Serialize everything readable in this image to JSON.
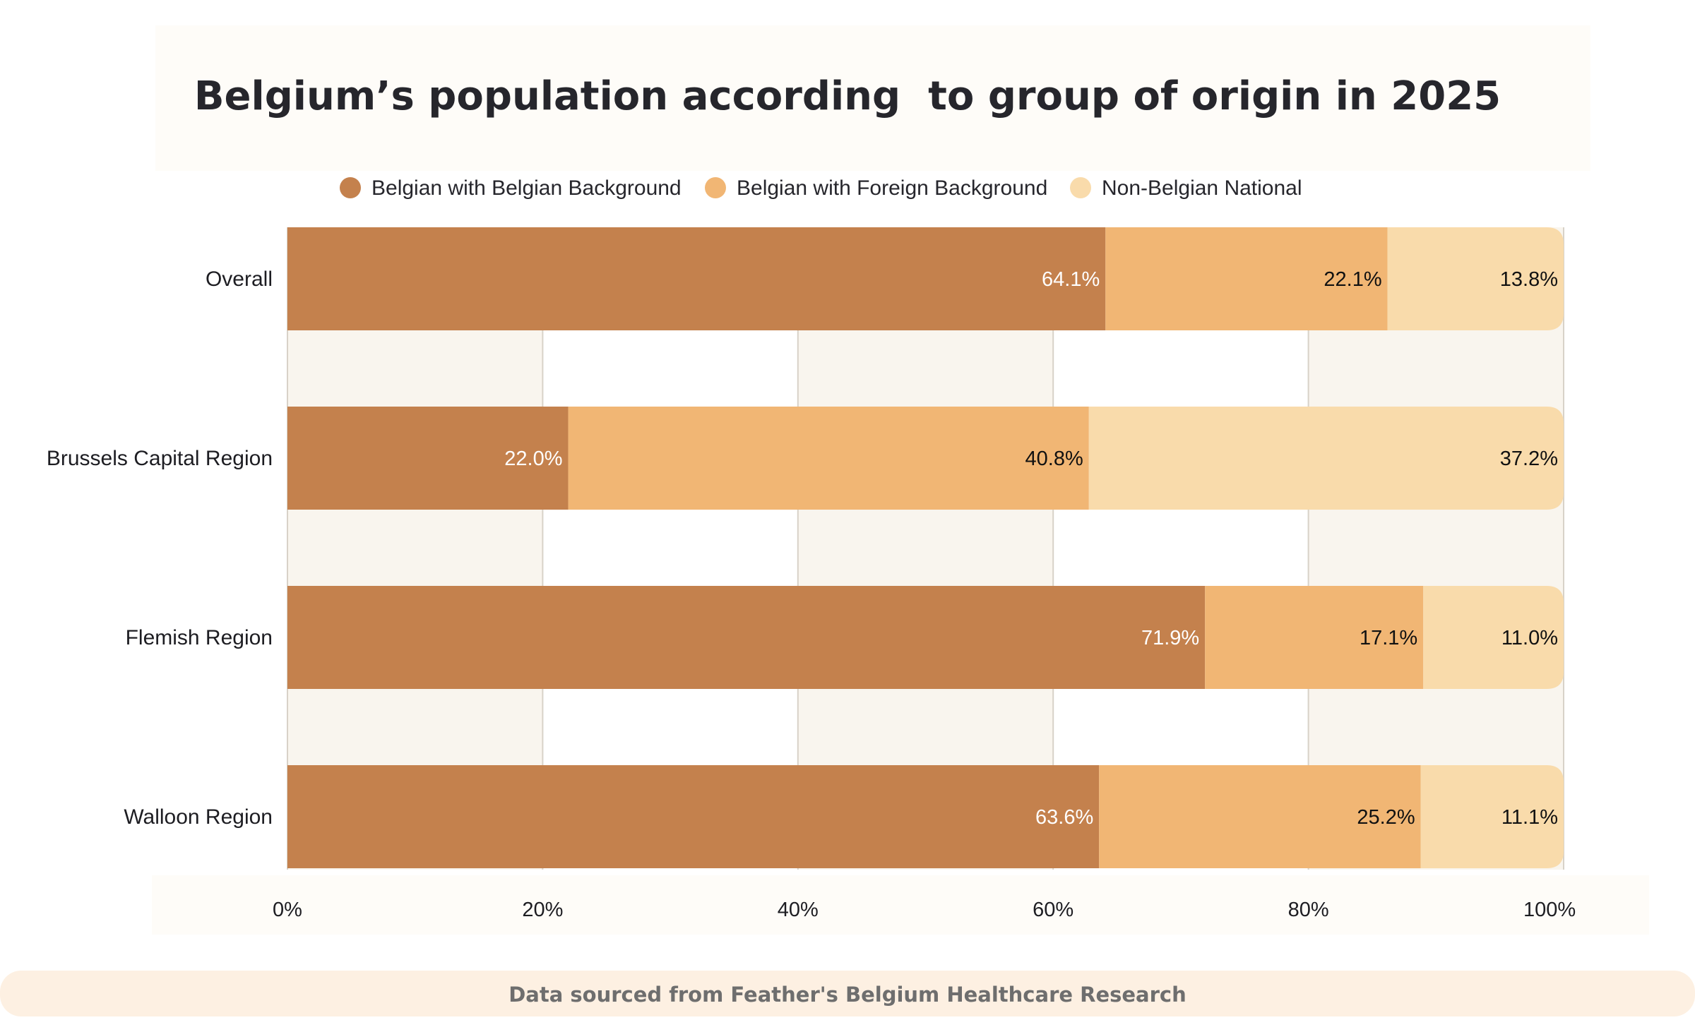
{
  "chart_data": {
    "type": "bar",
    "orientation": "horizontal",
    "stacked": true,
    "title": "Belgium’s population according  to group of origin in 2025",
    "categories": [
      "Overall",
      "Brussels Capital Region",
      "Flemish Region",
      "Walloon Region"
    ],
    "series": [
      {
        "name": "Belgian with Belgian Background",
        "color": "#c4814d",
        "values": [
          64.1,
          22.0,
          71.9,
          63.6
        ],
        "labels": [
          "64.1%",
          "22.0%",
          "71.9%",
          "63.6%"
        ],
        "label_color": "#ffffff"
      },
      {
        "name": "Belgian with Foreign Background",
        "color": "#f1b674",
        "values": [
          22.1,
          40.8,
          17.1,
          25.2
        ],
        "labels": [
          "22.1%",
          "40.8%",
          "17.1%",
          "25.2%"
        ],
        "label_color": "#111111"
      },
      {
        "name": "Non-Belgian National",
        "color": "#f9dbab",
        "values": [
          13.8,
          37.2,
          11.0,
          11.1
        ],
        "labels": [
          "13.8%",
          "37.2%",
          "11.0%",
          "11.1%"
        ],
        "label_color": "#111111"
      }
    ],
    "xlim": [
      0,
      100
    ],
    "xticks": [
      0,
      20,
      40,
      60,
      80,
      100
    ],
    "xtick_labels": [
      "0%",
      "20%",
      "40%",
      "60%",
      "80%",
      "100%"
    ],
    "grid": true,
    "legend": "top-center"
  },
  "footer": {
    "source_text": "Data sourced from Feather's Belgium Healthcare Research"
  },
  "colors": {
    "page_background": "#ffffff",
    "panel_background": "#fefcf8",
    "alt_band": "#f9f5ee",
    "gridline": "#d8d2c8",
    "footer_background": "#fdf0e2"
  }
}
